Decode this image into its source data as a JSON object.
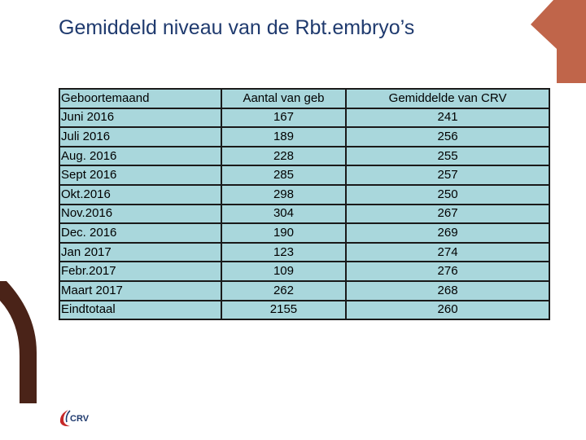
{
  "slide": {
    "title": "Gemiddeld niveau van de Rbt.embryo’s"
  },
  "table": {
    "headers": [
      "Geboortemaand",
      "Aantal van geb",
      "Gemiddelde van CRV"
    ],
    "rows": [
      [
        "Juni 2016",
        "167",
        "241"
      ],
      [
        "Juli 2016",
        "189",
        "256"
      ],
      [
        "Aug. 2016",
        "228",
        "255"
      ],
      [
        "Sept 2016",
        "285",
        "257"
      ],
      [
        "Okt.2016",
        "298",
        "250"
      ],
      [
        "Nov.2016",
        "304",
        "267"
      ],
      [
        "Dec. 2016",
        "190",
        "269"
      ],
      [
        "Jan 2017",
        "123",
        "274"
      ],
      [
        "Febr.2017",
        "109",
        "276"
      ],
      [
        "Maart 2017",
        "262",
        "268"
      ],
      [
        "Eindtotaal",
        "2155",
        "260"
      ]
    ]
  },
  "logo": {
    "text": "CRV",
    "icon": "crv-swoosh-icon"
  },
  "colors": {
    "title": "#1f3a6e",
    "table_fill": "#a9d7dc",
    "table_border": "#1a1a1a",
    "deco_orange": "#c0654a",
    "deco_brown": "#4a2318",
    "logo_red": "#c62828"
  }
}
